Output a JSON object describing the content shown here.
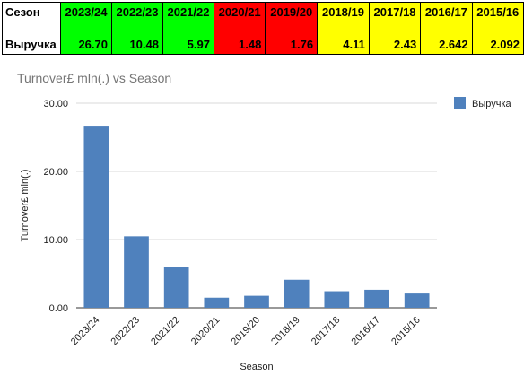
{
  "table": {
    "row_header_1": "Сезон",
    "row_header_2": "Выручка",
    "columns": [
      {
        "season": "2023/24",
        "value": "26.70",
        "color": "#00ff00"
      },
      {
        "season": "2022/23",
        "value": "10.48",
        "color": "#00ff00"
      },
      {
        "season": "2021/22",
        "value": "5.97",
        "color": "#00ff00"
      },
      {
        "season": "2020/21",
        "value": "1.48",
        "color": "#ff0000"
      },
      {
        "season": "2019/20",
        "value": "1.76",
        "color": "#ff0000"
      },
      {
        "season": "2018/19",
        "value": "4.11",
        "color": "#ffff00"
      },
      {
        "season": "2017/18",
        "value": "2.43",
        "color": "#ffff00"
      },
      {
        "season": "2016/17",
        "value": "2.642",
        "color": "#ffff00"
      },
      {
        "season": "2015/16",
        "value": "2.092",
        "color": "#ffff00"
      }
    ]
  },
  "chart_data": {
    "type": "bar",
    "title": "Turnover£ mln(.) vs  Season",
    "xlabel": "Season",
    "ylabel": "Turnover£ mln(.)",
    "categories": [
      "2023/24",
      "2022/23",
      "2021/22",
      "2020/21",
      "2019/20",
      "2018/19",
      "2017/18",
      "2016/17",
      "2015/16"
    ],
    "series": [
      {
        "name": "Выручка",
        "values": [
          26.7,
          10.48,
          5.97,
          1.48,
          1.76,
          4.11,
          2.43,
          2.642,
          2.092
        ],
        "color": "#4f81bd"
      }
    ],
    "ylim": [
      0,
      30
    ],
    "yticks": [
      "0.00",
      "10.00",
      "20.00",
      "30.00"
    ],
    "grid": true,
    "legend": "right"
  }
}
